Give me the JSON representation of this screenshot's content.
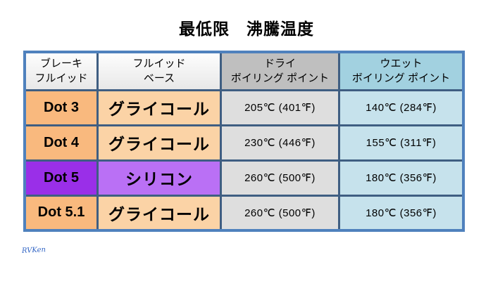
{
  "title": "最低限　沸騰温度",
  "watermark": "RVKen",
  "table": {
    "headers": [
      {
        "line1": "ブレーキ",
        "line2": "フルイッド"
      },
      {
        "line1": "フルイッド",
        "line2": "ベース"
      },
      {
        "line1": "ドライ",
        "line2": "ボイリング ポイント"
      },
      {
        "line1": "ウエット",
        "line2": "ボイリング ポイント"
      }
    ],
    "rows": [
      {
        "fluid": "Dot 3",
        "base": "グライコール",
        "dry": "205℃ (401℉)",
        "wet": "140℃ (284℉)"
      },
      {
        "fluid": "Dot 4",
        "base": "グライコール",
        "dry": "230℃ (446℉)",
        "wet": "155℃ (311℉)"
      },
      {
        "fluid": "Dot 5",
        "base": "シリコン",
        "dry": "260℃ (500℉)",
        "wet": "180℃ (356℉)"
      },
      {
        "fluid": "Dot 5.1",
        "base": "グライコール",
        "dry": "260℃ (500℉)",
        "wet": "180℃ (356℉)"
      }
    ]
  },
  "colors": {
    "border_outer": "#4f81bd",
    "border_inner": "#3f5e82",
    "header_light": "#f2f2f2",
    "header_dry": "#bfbfbf",
    "header_wet": "#a2d1e0",
    "cell_dry": "#dedede",
    "cell_wet": "#c6e2ec",
    "dot_orange": "#f9b97e",
    "base_peach": "#fbd3a6",
    "dot_purple": "#9a2fe8",
    "base_purple": "#ba70f5",
    "watermark_blue": "#2f63c4",
    "text": "#000000"
  },
  "chart_data": {
    "type": "table",
    "title": "最低限　沸騰温度",
    "columns": [
      "ブレーキ フルイッド",
      "フルイッド ベース",
      "ドライ ボイリング ポイント",
      "ウエット ボイリング ポイント"
    ],
    "rows": [
      [
        "Dot 3",
        "グライコール",
        "205℃ (401℉)",
        "140℃ (284℉)"
      ],
      [
        "Dot 4",
        "グライコール",
        "230℃ (446℉)",
        "155℃ (311℉)"
      ],
      [
        "Dot 5",
        "シリコン",
        "260℃ (500℉)",
        "180℃ (356℉)"
      ],
      [
        "Dot 5.1",
        "グライコール",
        "260℃ (500℉)",
        "180℃ (356℉)"
      ]
    ],
    "dry_boiling_point_c": [
      205,
      230,
      260,
      260
    ],
    "dry_boiling_point_f": [
      401,
      446,
      500,
      500
    ],
    "wet_boiling_point_c": [
      140,
      155,
      180,
      180
    ],
    "wet_boiling_point_f": [
      284,
      311,
      356,
      356
    ]
  }
}
